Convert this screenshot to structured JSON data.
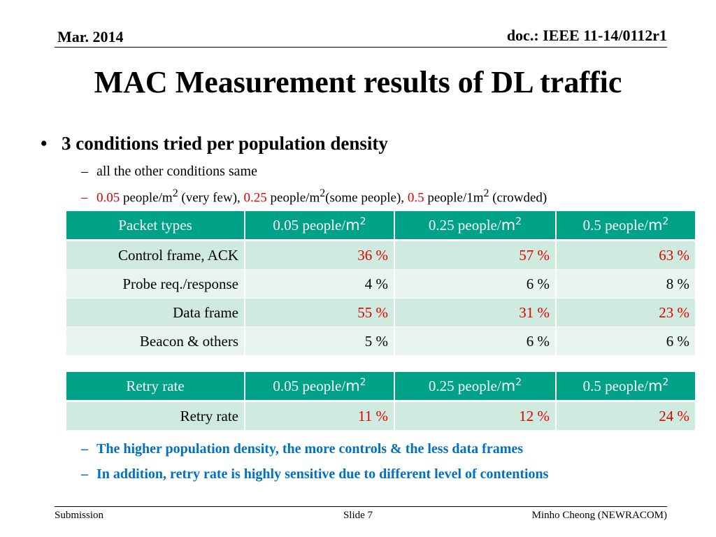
{
  "header": {
    "date": "Mar. 2014",
    "doc": "doc.: IEEE 11-14/0112r1"
  },
  "title": "MAC Measurement results of DL traffic",
  "bullet": {
    "marker": "•",
    "text": "3 conditions tried per population density"
  },
  "sub1": {
    "dash": "–",
    "text": "all the other conditions same"
  },
  "sub2": {
    "dash": "–",
    "v1": "0.05",
    "t1": " people/m",
    "s1": "2",
    "t1b": " (very few), ",
    "v2": "0.25",
    "t2": " people/m",
    "s2": "2",
    "t2b": "(some people), ",
    "v3": "0.5",
    "t3": " people/1m",
    "s3": "2",
    "t3b": " (crowded)"
  },
  "table1": {
    "headers": [
      {
        "a": "Packet types",
        "b": "",
        "c": ""
      },
      {
        "a": "0.05 people/",
        "b": "m",
        "c": "2"
      },
      {
        "a": "0.25 people/",
        "b": "m",
        "c": "2"
      },
      {
        "a": "0.5 people/",
        "b": "m",
        "c": "2"
      }
    ],
    "rows": [
      {
        "label": "Control frame, ACK",
        "cells": [
          "36 %",
          "57 %",
          "63 %"
        ],
        "highlight": true
      },
      {
        "label": "Probe req./response",
        "cells": [
          "4 %",
          "6 %",
          "8 %"
        ],
        "highlight": false
      },
      {
        "label": "Data frame",
        "cells": [
          "55 %",
          "31 %",
          "23 %"
        ],
        "highlight": true
      },
      {
        "label": "Beacon & others",
        "cells": [
          "5 %",
          "6 %",
          "6 %"
        ],
        "highlight": false
      }
    ]
  },
  "table2": {
    "headers": [
      {
        "a": "Retry rate",
        "b": "",
        "c": ""
      },
      {
        "a": "0.05 people/",
        "b": "m",
        "c": "2"
      },
      {
        "a": "0.25 people/",
        "b": "m",
        "c": "2"
      },
      {
        "a": "0.5 people/",
        "b": "m",
        "c": "2"
      }
    ],
    "rows": [
      {
        "label": "Retry rate",
        "cells": [
          "11 %",
          "12 %",
          "24 %"
        ],
        "highlight": true
      }
    ]
  },
  "conclusions": [
    {
      "dash": "–",
      "text": "The higher population density, the more controls & the less data frames"
    },
    {
      "dash": "–",
      "text": "In addition, retry rate is highly sensitive due to different level of contentions"
    }
  ],
  "footer": {
    "left": "Submission",
    "center": "Slide 7",
    "right": "Minho Cheong (NEWRACOM)"
  },
  "colors": {
    "header_bg": "#00a287",
    "row_dark": "#cfeade",
    "row_light": "#e8f4ee",
    "highlight": "#e00000",
    "conclusion": "#0070c0"
  }
}
